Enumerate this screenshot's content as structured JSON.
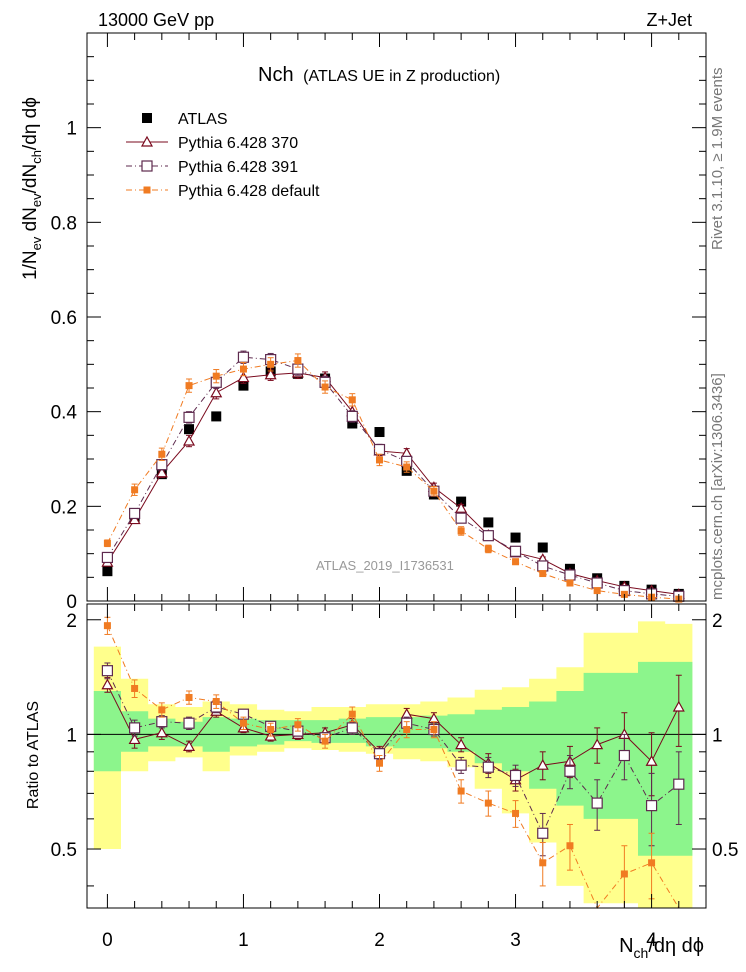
{
  "header": {
    "left": "13000 GeV pp",
    "right": "Z+Jet"
  },
  "side_text": {
    "rivet": "Rivet 3.1.10, ≥ 1.9M events",
    "mcplots": "mcplots.cern.ch [arXiv:1306.3436]"
  },
  "main_title": {
    "main": "Nch",
    "sub": "(ATLAS UE in Z production)"
  },
  "watermark": "ATLAS_2019_I1736531",
  "main_ylabel": {
    "a": "1/N",
    "a_sub": "ev",
    "b": " dN",
    "b_sub": "ev",
    "c": "/dN",
    "c_sub": "ch",
    "d": "/dη dϕ"
  },
  "ratio_ylabel": "Ratio to ATLAS",
  "xlabel": {
    "a": "N",
    "a_sub": "ch",
    "b": "/dη dϕ"
  },
  "colors": {
    "atlas": "#000000",
    "p370": "#7a0a1e",
    "p391": "#5e2a4e",
    "default": "#f07b22",
    "band_yellow": "#ffff8c",
    "band_green": "#8cf58c"
  },
  "chart_data": [
    {
      "type": "scatter",
      "title": "Nch (ATLAS UE in Z production)",
      "xlabel": "Nch/dη dφ",
      "ylabel": "1/Nev dNev/dNch/dη dφ",
      "xlim": [
        -0.15,
        4.4
      ],
      "ylim": [
        0,
        1.2
      ],
      "x_ticks": [
        0,
        1,
        2,
        3,
        4
      ],
      "y_ticks": [
        0,
        0.2,
        0.4,
        0.6,
        0.8,
        1
      ],
      "y_tick_labels": [
        "0",
        "0.2",
        "0.4",
        "0.6",
        "0.8",
        "1"
      ],
      "legend_position": "top-left",
      "x": [
        0,
        0.2,
        0.4,
        0.6,
        0.8,
        1.0,
        1.2,
        1.4,
        1.6,
        1.8,
        2.0,
        2.2,
        2.4,
        2.6,
        2.8,
        3.0,
        3.2,
        3.4,
        3.6,
        3.8,
        4.0,
        4.2
      ],
      "series": [
        {
          "name": "ATLAS",
          "marker": "square-filled",
          "values": [
            0.063,
            0.178,
            0.268,
            0.363,
            0.39,
            0.455,
            0.485,
            0.48,
            0.47,
            0.375,
            0.357,
            0.275,
            0.225,
            0.21,
            0.166,
            0.134,
            0.113,
            0.068,
            0.048,
            0.032,
            0.024,
            0.015
          ]
        },
        {
          "name": "Pythia 6.428 370",
          "marker": "triangle-open",
          "values": [
            0.082,
            0.172,
            0.271,
            0.338,
            0.44,
            0.472,
            0.478,
            0.482,
            0.472,
            0.4,
            0.317,
            0.312,
            0.24,
            0.196,
            0.139,
            0.102,
            0.088,
            0.058,
            0.043,
            0.03,
            0.022,
            0.014
          ],
          "errors": [
            0.005,
            0.008,
            0.01,
            0.012,
            0.013,
            0.012,
            0.012,
            0.012,
            0.012,
            0.012,
            0.01,
            0.01,
            0.009,
            0.008,
            0.007,
            0.006,
            0.005,
            0.005,
            0.004,
            0.004,
            0.004,
            0.004
          ]
        },
        {
          "name": "Pythia 6.428 391",
          "marker": "square-open",
          "values": [
            0.092,
            0.185,
            0.288,
            0.388,
            0.462,
            0.515,
            0.51,
            0.49,
            0.462,
            0.39,
            0.32,
            0.295,
            0.232,
            0.175,
            0.138,
            0.105,
            0.074,
            0.055,
            0.038,
            0.022,
            0.015,
            0.01
          ],
          "errors": [
            0.006,
            0.009,
            0.011,
            0.012,
            0.013,
            0.013,
            0.013,
            0.013,
            0.013,
            0.012,
            0.011,
            0.01,
            0.009,
            0.008,
            0.007,
            0.006,
            0.005,
            0.005,
            0.004,
            0.004,
            0.004,
            0.003
          ]
        },
        {
          "name": "Pythia 6.428 default",
          "marker": "square-filled",
          "values": [
            0.122,
            0.235,
            0.31,
            0.455,
            0.475,
            0.49,
            0.5,
            0.508,
            0.452,
            0.425,
            0.298,
            0.283,
            0.232,
            0.148,
            0.11,
            0.083,
            0.058,
            0.038,
            0.022,
            0.014,
            0.008,
            0.004
          ],
          "errors": [
            0.007,
            0.012,
            0.013,
            0.014,
            0.014,
            0.014,
            0.014,
            0.014,
            0.013,
            0.013,
            0.012,
            0.011,
            0.01,
            0.009,
            0.008,
            0.006,
            0.005,
            0.005,
            0.004,
            0.003,
            0.003,
            0.003
          ]
        }
      ]
    },
    {
      "type": "line",
      "title": "",
      "xlabel": "Nch/dη dφ",
      "ylabel": "Ratio to ATLAS",
      "xlim": [
        -0.15,
        4.4
      ],
      "ylim": [
        0.35,
        2.2
      ],
      "x_ticks": [
        0,
        1,
        2,
        3,
        4
      ],
      "y_ticks": [
        0.5,
        1,
        2
      ],
      "y_tick_labels": [
        "0.5",
        "1",
        "2"
      ],
      "x": [
        0,
        0.2,
        0.4,
        0.6,
        0.8,
        1.0,
        1.2,
        1.4,
        1.6,
        1.8,
        2.0,
        2.2,
        2.4,
        2.6,
        2.8,
        3.0,
        3.2,
        3.4,
        3.6,
        3.8,
        4.0,
        4.2
      ],
      "band_edges": [
        -0.1,
        0.1,
        0.3,
        0.5,
        0.7,
        0.9,
        1.1,
        1.3,
        1.5,
        1.7,
        1.9,
        2.1,
        2.3,
        2.5,
        2.7,
        2.9,
        3.1,
        3.3,
        3.5,
        3.7,
        3.9,
        4.1,
        4.3
      ],
      "band_yellow": {
        "lo": [
          0.5,
          0.8,
          0.85,
          0.87,
          0.8,
          0.88,
          0.9,
          0.92,
          0.91,
          0.9,
          0.89,
          0.86,
          0.85,
          0.82,
          0.72,
          0.62,
          0.52,
          0.4,
          0.36,
          0.36,
          0.35,
          0.35
        ],
        "hi": [
          1.7,
          1.4,
          1.2,
          1.18,
          1.22,
          1.2,
          1.16,
          1.15,
          1.18,
          1.18,
          1.2,
          1.2,
          1.22,
          1.25,
          1.31,
          1.33,
          1.4,
          1.5,
          1.85,
          1.85,
          1.98,
          1.95
        ]
      },
      "band_green": {
        "lo": [
          0.8,
          0.9,
          0.93,
          0.93,
          0.9,
          0.93,
          0.94,
          0.96,
          0.95,
          0.95,
          0.93,
          0.92,
          0.92,
          0.9,
          0.84,
          0.8,
          0.72,
          0.65,
          0.6,
          0.6,
          0.48,
          0.48
        ],
        "hi": [
          1.3,
          1.15,
          1.1,
          1.08,
          1.11,
          1.1,
          1.09,
          1.09,
          1.09,
          1.1,
          1.11,
          1.11,
          1.12,
          1.13,
          1.16,
          1.18,
          1.22,
          1.3,
          1.45,
          1.45,
          1.55,
          1.55
        ]
      },
      "series": [
        {
          "name": "Pythia 6.428 370",
          "marker": "triangle-open",
          "values": [
            1.35,
            0.97,
            1.01,
            0.93,
            1.15,
            1.04,
            0.99,
            1.0,
            1.01,
            1.06,
            0.9,
            1.13,
            1.1,
            0.94,
            0.84,
            0.76,
            0.83,
            0.85,
            0.94,
            1.0,
            0.85,
            1.18
          ],
          "errors": [
            0.06,
            0.05,
            0.04,
            0.03,
            0.04,
            0.03,
            0.03,
            0.03,
            0.03,
            0.04,
            0.03,
            0.04,
            0.04,
            0.04,
            0.05,
            0.05,
            0.07,
            0.08,
            0.1,
            0.14,
            0.16,
            0.25
          ]
        },
        {
          "name": "Pythia 6.428 391",
          "marker": "square-open",
          "values": [
            1.47,
            1.04,
            1.08,
            1.07,
            1.18,
            1.13,
            1.05,
            1.02,
            0.98,
            1.04,
            0.89,
            1.07,
            1.03,
            0.83,
            0.82,
            0.78,
            0.55,
            0.8,
            0.66,
            0.88,
            0.65,
            0.74
          ],
          "errors": [
            0.07,
            0.05,
            0.04,
            0.04,
            0.04,
            0.03,
            0.03,
            0.03,
            0.03,
            0.04,
            0.03,
            0.04,
            0.04,
            0.04,
            0.05,
            0.05,
            0.07,
            0.08,
            0.1,
            0.12,
            0.14,
            0.16
          ]
        },
        {
          "name": "Pythia 6.428 default",
          "marker": "square-filled",
          "values": [
            1.93,
            1.32,
            1.16,
            1.25,
            1.22,
            1.07,
            1.03,
            1.06,
            0.96,
            1.13,
            0.84,
            1.03,
            1.03,
            0.71,
            0.66,
            0.62,
            0.46,
            0.51,
            0.34,
            0.43,
            0.46,
            0.33
          ],
          "errors": [
            0.1,
            0.07,
            0.05,
            0.05,
            0.05,
            0.04,
            0.04,
            0.04,
            0.04,
            0.05,
            0.04,
            0.05,
            0.05,
            0.05,
            0.05,
            0.05,
            0.06,
            0.07,
            0.07,
            0.08,
            0.09,
            0.1
          ]
        }
      ]
    }
  ]
}
